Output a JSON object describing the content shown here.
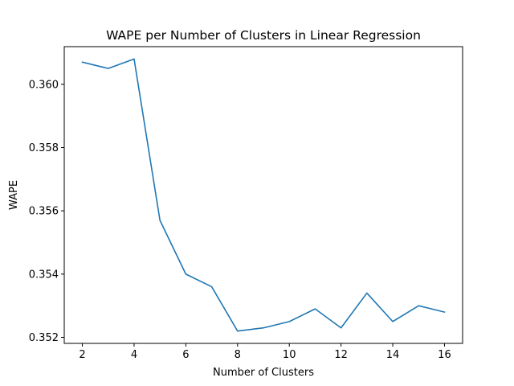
{
  "chart_data": {
    "type": "line",
    "title": "WAPE per Number of Clusters in Linear Regression",
    "xlabel": "Number of Clusters",
    "ylabel": "WAPE",
    "x": [
      2,
      3,
      4,
      5,
      6,
      7,
      8,
      9,
      10,
      11,
      12,
      13,
      14,
      15,
      16
    ],
    "series": [
      {
        "name": "WAPE",
        "color": "#1f77b4",
        "values": [
          0.3607,
          0.3605,
          0.3608,
          0.3557,
          0.354,
          0.3536,
          0.3522,
          0.3523,
          0.3525,
          0.3529,
          0.3523,
          0.3534,
          0.3525,
          0.353,
          0.3528
        ]
      }
    ],
    "xticks": [
      2,
      4,
      6,
      8,
      10,
      12,
      14,
      16
    ],
    "xtick_labels": [
      "2",
      "4",
      "6",
      "8",
      "10",
      "12",
      "14",
      "16"
    ],
    "yticks": [
      0.352,
      0.354,
      0.356,
      0.358,
      0.36
    ],
    "ytick_labels": [
      "0.352",
      "0.354",
      "0.356",
      "0.358",
      "0.360"
    ],
    "xlim": [
      1.3,
      16.7
    ],
    "ylim": [
      0.35181,
      0.36119
    ],
    "grid": false,
    "legend": "none"
  }
}
